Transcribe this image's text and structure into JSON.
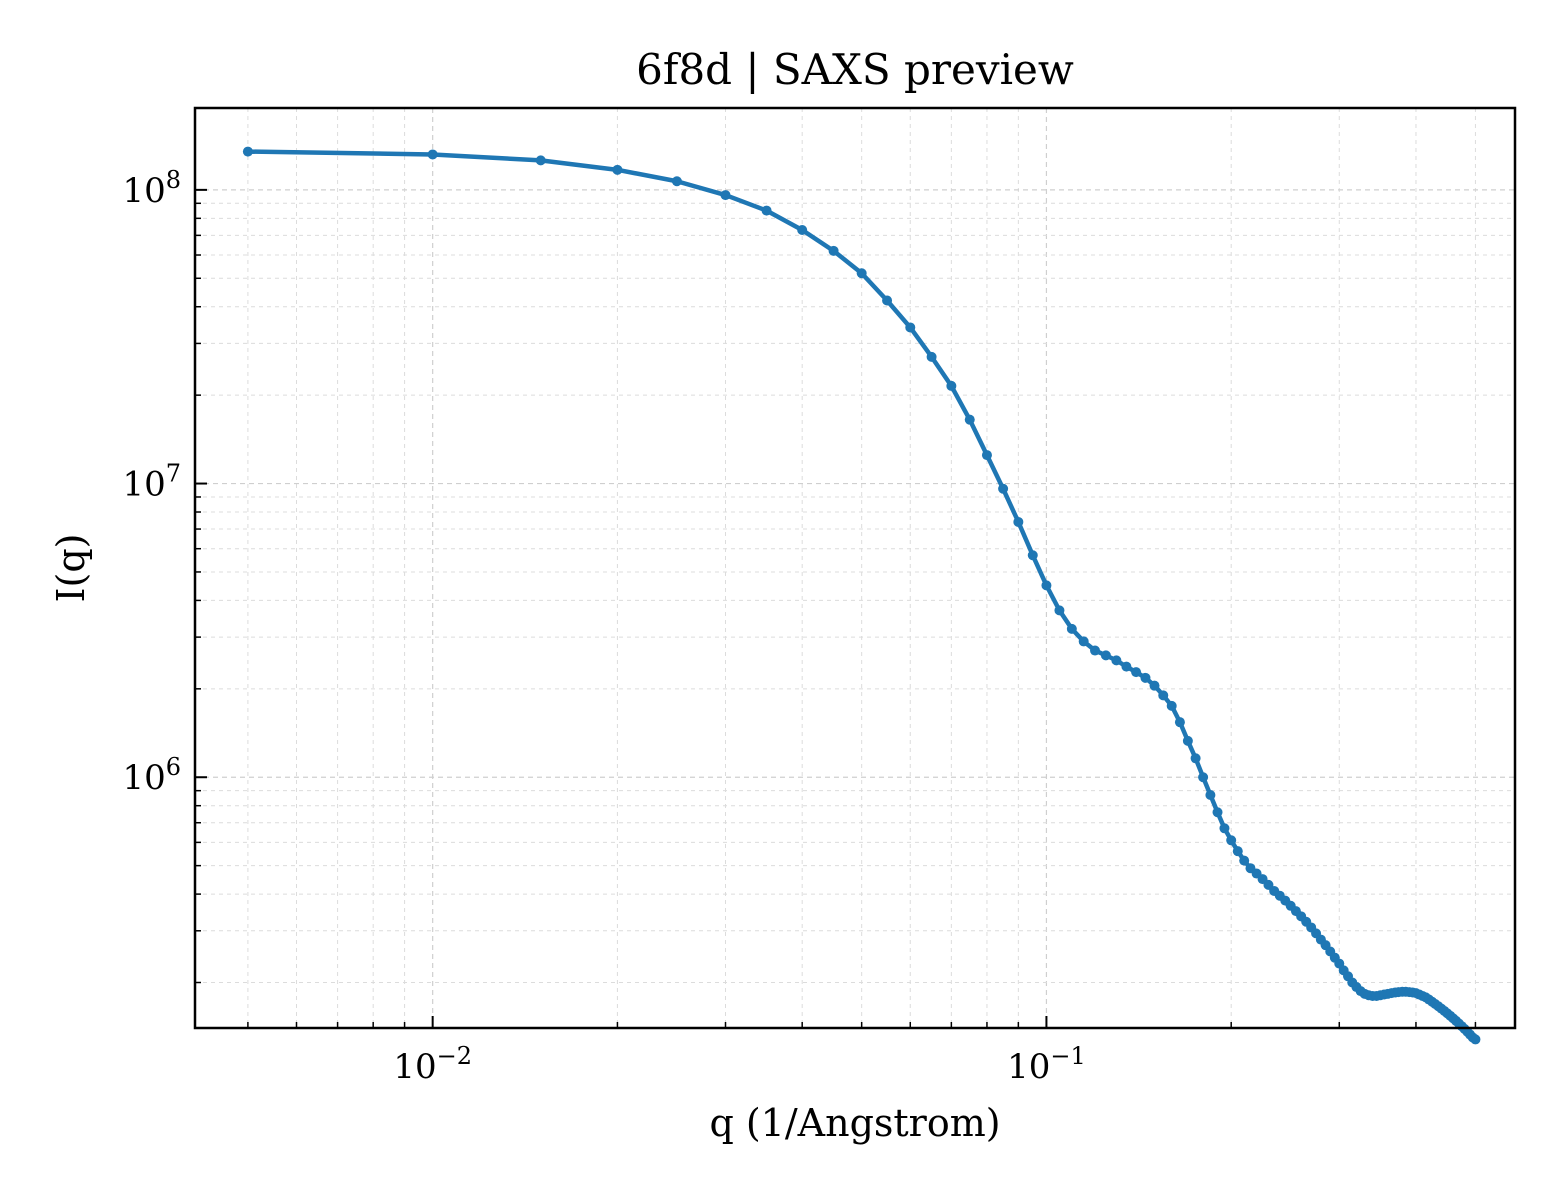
{
  "chart_data": {
    "type": "line",
    "title": "6f8d | SAXS preview",
    "xlabel": "q (1/Angstrom)",
    "ylabel": "I(q)",
    "xscale": "log",
    "yscale": "log",
    "xlim": [
      0.0041,
      0.58
    ],
    "ylim": [
      140000,
      190000000
    ],
    "grid": true,
    "legend": "none",
    "x_ticks": [
      {
        "value": 0.01,
        "base": "10",
        "exp": "−2"
      },
      {
        "value": 0.1,
        "base": "10",
        "exp": "−1"
      }
    ],
    "y_ticks": [
      {
        "value": 1000000,
        "base": "10",
        "exp": "6"
      },
      {
        "value": 10000000,
        "base": "10",
        "exp": "7"
      },
      {
        "value": 100000000,
        "base": "10",
        "exp": "8"
      }
    ],
    "series": [
      {
        "color": "#1f77b4",
        "marker": "circle",
        "x": [
          0.005,
          0.01,
          0.015,
          0.02,
          0.025,
          0.03,
          0.035,
          0.04,
          0.045,
          0.05,
          0.055,
          0.06,
          0.065,
          0.07,
          0.075,
          0.08,
          0.085,
          0.09,
          0.095,
          0.1,
          0.105,
          0.11,
          0.115,
          0.12,
          0.125,
          0.13,
          0.135,
          0.14,
          0.145,
          0.15,
          0.155,
          0.16,
          0.165,
          0.17,
          0.175,
          0.18,
          0.185,
          0.19,
          0.195,
          0.2,
          0.205,
          0.21,
          0.215,
          0.22,
          0.225,
          0.23,
          0.235,
          0.24,
          0.245,
          0.25,
          0.255,
          0.26,
          0.265,
          0.27,
          0.275,
          0.28,
          0.285,
          0.29,
          0.295,
          0.3,
          0.305,
          0.31,
          0.315,
          0.32,
          0.325,
          0.33,
          0.335,
          0.34,
          0.345,
          0.35,
          0.355,
          0.36,
          0.365,
          0.37,
          0.375,
          0.38,
          0.385,
          0.39,
          0.395,
          0.4,
          0.405,
          0.41,
          0.415,
          0.42,
          0.425,
          0.43,
          0.435,
          0.44,
          0.445,
          0.45,
          0.455,
          0.46,
          0.465,
          0.47,
          0.475,
          0.48,
          0.485,
          0.49,
          0.495,
          0.5
        ],
        "y": [
          135000000,
          132000000,
          126000000,
          117000000,
          107000000,
          96000000,
          85000000,
          73000000,
          62000000,
          52000000,
          42000000,
          34000000,
          27000000,
          21500000,
          16500000,
          12500000,
          9600000,
          7400000,
          5700000,
          4500000,
          3700000,
          3200000,
          2900000,
          2700000,
          2600000,
          2500000,
          2380000,
          2280000,
          2180000,
          2050000,
          1900000,
          1750000,
          1540000,
          1330000,
          1160000,
          1000000,
          870000,
          760000,
          670000,
          610000,
          560000,
          520000,
          490000,
          470000,
          450000,
          430000,
          410000,
          395000,
          380000,
          365000,
          350000,
          336000,
          322000,
          308000,
          294000,
          280000,
          268000,
          255000,
          243000,
          232000,
          220000,
          210000,
          200000,
          193000,
          187000,
          183000,
          181000,
          180000,
          180000,
          181000,
          182000,
          183000,
          184000,
          185000,
          185500,
          186000,
          186000,
          185500,
          185000,
          184000,
          182000,
          180000,
          178000,
          175000,
          172000,
          169000,
          166000,
          163000,
          160000,
          157000,
          154000,
          151000,
          148000,
          145000,
          142000,
          139000,
          136000,
          133000,
          130000,
          128000
        ]
      }
    ]
  }
}
